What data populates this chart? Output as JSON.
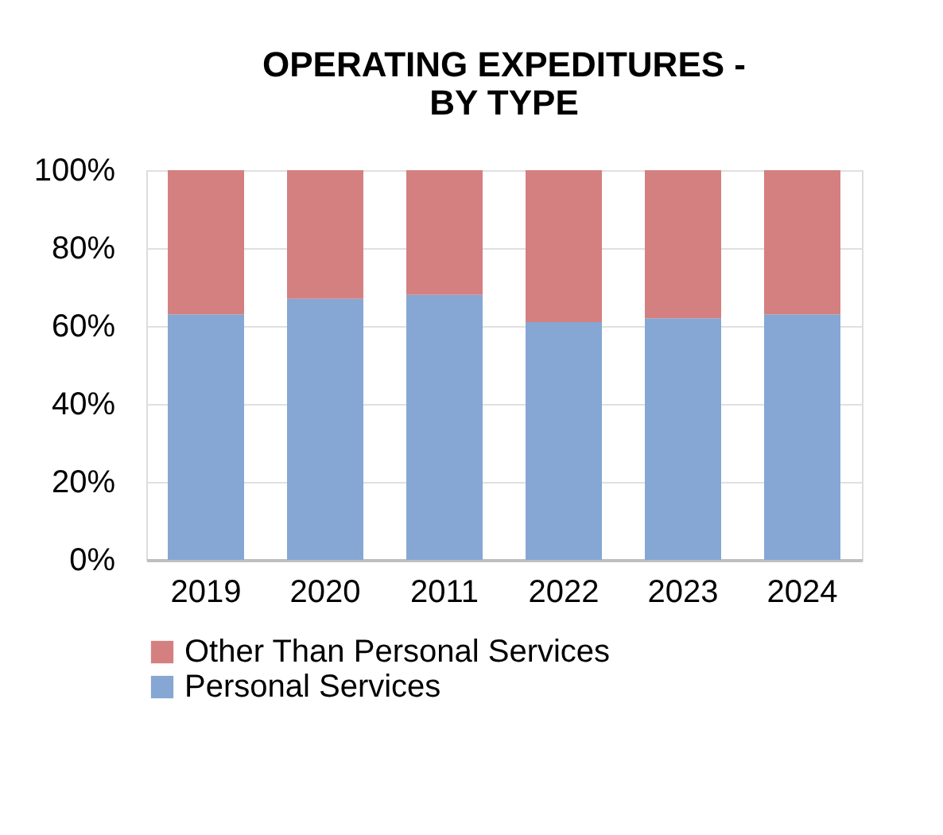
{
  "chart_data": {
    "type": "bar",
    "stacked": true,
    "title": "OPERATING EXPEDITURES -\nBY TYPE",
    "categories": [
      "2019",
      "2020",
      "2011",
      "2022",
      "2023",
      "2024"
    ],
    "series": [
      {
        "name": "Personal Services",
        "color": "#86a7d3",
        "values": [
          63,
          67,
          68,
          61,
          62,
          63
        ]
      },
      {
        "name": "Other Than Personal Services",
        "color": "#d48080",
        "values": [
          37,
          33,
          32,
          39,
          38,
          37
        ]
      }
    ],
    "ylim": [
      0,
      100
    ],
    "yticks": [
      {
        "value": 0,
        "label": "0%"
      },
      {
        "value": 20,
        "label": "20%"
      },
      {
        "value": 40,
        "label": "40%"
      },
      {
        "value": 60,
        "label": "60%"
      },
      {
        "value": 80,
        "label": "80%"
      },
      {
        "value": 100,
        "label": "100%"
      }
    ],
    "grid": "y",
    "legend": "bottom"
  }
}
